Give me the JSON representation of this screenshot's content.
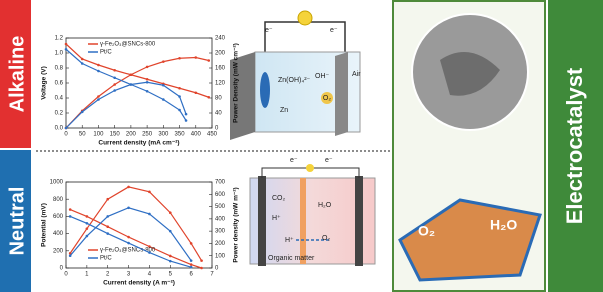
{
  "labels": {
    "alkaline": "Alkaline",
    "neutral": "Neutral",
    "electrocatalyst": "Electrocatalyst",
    "top_diagram": {
      "e_left": "e⁻",
      "e_right": "e⁻",
      "zincate": "Zn(OH)₄²⁻",
      "zn": "Zn",
      "oh": "OH⁻",
      "o2": "O₂",
      "air": "Air"
    },
    "bottom_diagram": {
      "e_left": "e⁻",
      "e_right": "e⁻",
      "co2": "CO₂",
      "h_plus_1": "H⁺",
      "h_plus_2": "H⁺",
      "organic": "Organic matter",
      "h2o": "H₂O",
      "o2": "O₂"
    },
    "catalyst": {
      "o2": "O₂",
      "h2o": "H₂O"
    }
  },
  "chart_data": [
    {
      "type": "line",
      "xlabel": "Current density (mA cm⁻²)",
      "ylabel": "Voltage (V)",
      "y2label": "Power Density (mW cm⁻²)",
      "xlim": [
        0,
        450
      ],
      "xticks": [
        0,
        50,
        100,
        150,
        200,
        250,
        300,
        350,
        400,
        450
      ],
      "ylim": [
        0,
        1.2
      ],
      "yticks": [
        {
          "value": 0,
          "label": "0.0"
        },
        0.2,
        0.4,
        0.6,
        0.8,
        {
          "value": 1,
          "label": "1.0"
        },
        1.2
      ],
      "y2lim": [
        0,
        240
      ],
      "y2ticks": [
        0,
        40,
        80,
        120,
        160,
        200,
        240
      ],
      "legend": "upper left",
      "series": [
        {
          "name": "γ-Fe₂O₃@SNCs-800",
          "color": "#e0442c",
          "x": [
            0,
            50,
            100,
            150,
            200,
            250,
            300,
            350,
            400,
            440
          ],
          "values": [
            1.12,
            0.92,
            0.84,
            0.77,
            0.71,
            0.65,
            0.59,
            0.53,
            0.47,
            0.41
          ],
          "y2values": [
            0,
            46,
            84,
            116,
            142,
            163,
            177,
            186,
            188,
            180
          ]
        },
        {
          "name": "Pt/C",
          "color": "#2f6fc4",
          "x": [
            0,
            50,
            100,
            150,
            200,
            250,
            300,
            350,
            370
          ],
          "values": [
            1.05,
            0.86,
            0.76,
            0.67,
            0.58,
            0.49,
            0.38,
            0.24,
            0.1
          ],
          "y2values": [
            0,
            43,
            76,
            100,
            116,
            122,
            114,
            84,
            37
          ]
        }
      ]
    },
    {
      "type": "line",
      "xlabel": "Current density (A m⁻²)",
      "ylabel": "Potential (mV)",
      "y2label": "Power density (mW m⁻²)",
      "xlim": [
        0,
        7
      ],
      "xticks": [
        0,
        1,
        2,
        3,
        4,
        5,
        6,
        7
      ],
      "ylim": [
        0,
        1000
      ],
      "yticks": [
        0,
        200,
        400,
        600,
        800,
        1000
      ],
      "y2lim": [
        0,
        700
      ],
      "y2ticks": [
        0,
        100,
        200,
        300,
        400,
        500,
        600,
        700
      ],
      "legend": "lower left",
      "series": [
        {
          "name": "γ-Fe₂O₃@SNCs-800",
          "color": "#e0442c",
          "x": [
            0.2,
            1,
            2,
            3,
            4,
            5,
            6,
            6.5
          ],
          "values": [
            680,
            600,
            480,
            360,
            250,
            140,
            40,
            0
          ],
          "y2values": [
            120,
            320,
            560,
            660,
            620,
            450,
            200,
            60
          ]
        },
        {
          "name": "Pt/C",
          "color": "#2f6fc4",
          "x": [
            0.2,
            1,
            2,
            3,
            4,
            5,
            6
          ],
          "values": [
            600,
            520,
            400,
            290,
            180,
            80,
            10
          ],
          "y2values": [
            100,
            260,
            420,
            490,
            440,
            300,
            60
          ]
        }
      ]
    }
  ]
}
